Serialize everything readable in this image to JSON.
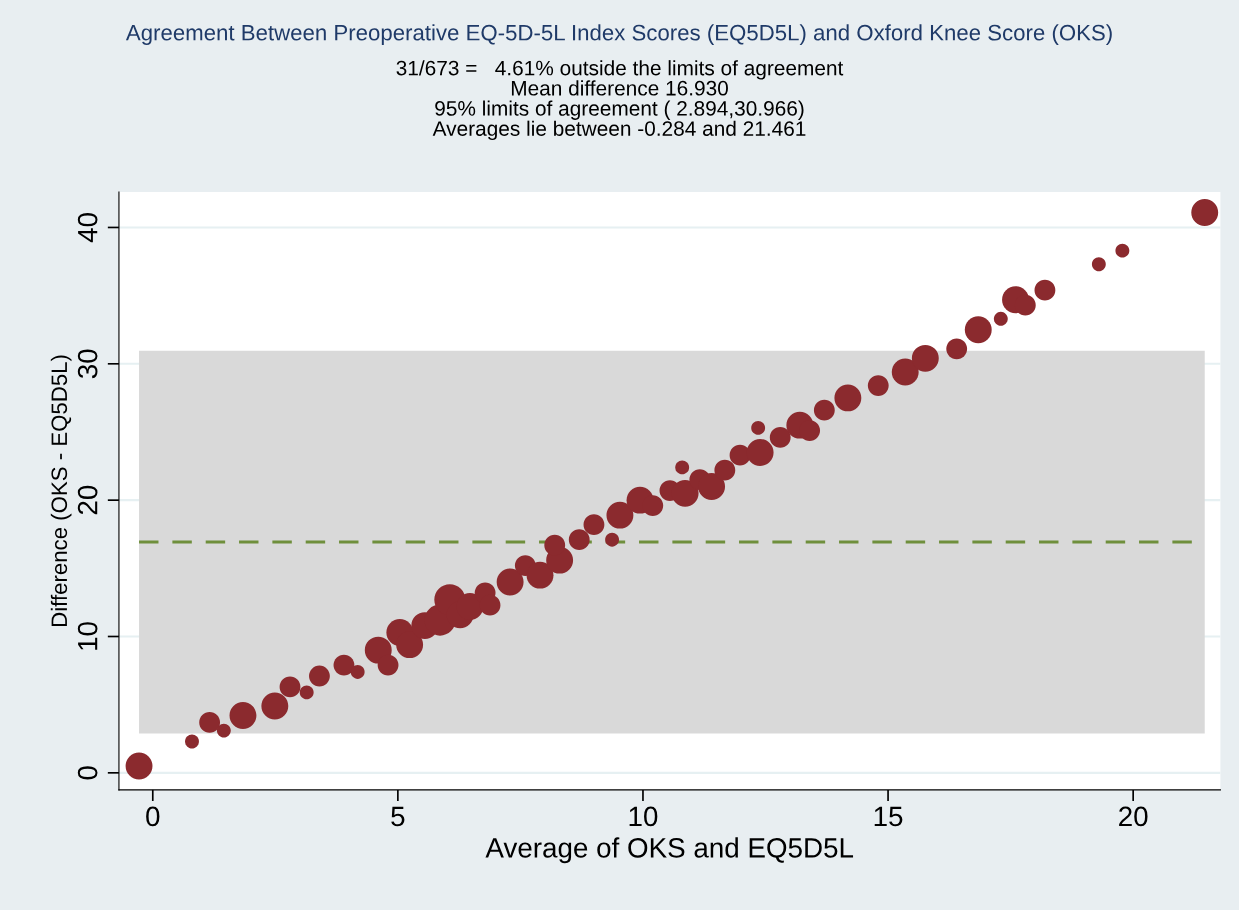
{
  "chart_data": {
    "type": "bubble",
    "title": "Agreement Between Preoperative EQ-5D-5L Index Scores (EQ5D5L) and Oxford Knee Score (OKS)",
    "subtitle": "31/673 =   4.61% outside the limits of agreement\nMean difference 16.930\n95% limits of agreement ( 2.894,30.966)\nAverages lie between -0.284 and 21.461",
    "xlabel": "Average of OKS and EQ5D5L",
    "ylabel": "Difference (OKS - EQ5D5L)",
    "x": [
      -0.28,
      0.8,
      1.16,
      1.45,
      1.84,
      2.49,
      2.8,
      3.14,
      3.4,
      3.9,
      4.18,
      4.6,
      4.8,
      5.04,
      5.24,
      5.55,
      5.86,
      6.06,
      6.27,
      6.47,
      6.78,
      6.88,
      7.29,
      7.6,
      7.9,
      8.3,
      8.2,
      8.7,
      9.0,
      9.37,
      9.53,
      9.94,
      10.2,
      10.55,
      10.86,
      10.8,
      11.16,
      11.4,
      11.67,
      11.98,
      12.35,
      12.39,
      12.8,
      13.2,
      13.4,
      13.7,
      14.18,
      14.8,
      15.35,
      15.76,
      16.4,
      16.84,
      17.3,
      17.6,
      17.8,
      18.2,
      19.3,
      19.78,
      21.46
    ],
    "values": [
      0.5,
      2.3,
      3.7,
      3.1,
      4.2,
      4.9,
      6.3,
      5.9,
      7.1,
      7.9,
      7.4,
      9.0,
      7.9,
      10.3,
      9.4,
      10.8,
      11.2,
      12.7,
      11.6,
      12.2,
      13.2,
      12.3,
      14.0,
      15.2,
      14.5,
      15.6,
      16.7,
      17.1,
      18.2,
      17.1,
      18.9,
      20.0,
      19.6,
      20.7,
      20.5,
      22.4,
      21.5,
      21.0,
      22.2,
      23.3,
      25.3,
      23.5,
      24.6,
      25.5,
      25.1,
      26.6,
      27.5,
      28.4,
      29.4,
      30.4,
      31.1,
      32.5,
      33.3,
      34.7,
      34.3,
      35.4,
      37.3,
      38.3,
      41.1
    ],
    "sizes": [
      0.75,
      0.2,
      0.45,
      0.2,
      0.75,
      0.75,
      0.45,
      0.2,
      0.45,
      0.45,
      0.2,
      0.75,
      0.45,
      0.75,
      0.75,
      0.75,
      1,
      1,
      0.75,
      0.75,
      0.45,
      0.45,
      0.75,
      0.45,
      0.75,
      0.75,
      0.45,
      0.45,
      0.45,
      0.2,
      0.75,
      0.75,
      0.45,
      0.45,
      0.75,
      0.2,
      0.45,
      0.75,
      0.45,
      0.45,
      0.2,
      0.75,
      0.45,
      0.75,
      0.45,
      0.45,
      0.75,
      0.45,
      0.75,
      0.75,
      0.45,
      0.75,
      0.2,
      0.75,
      0.45,
      0.45,
      0.2,
      0.2,
      0.75
    ],
    "color": "#8b2a2e",
    "xlim": [
      -0.69,
      21.78
    ],
    "ylim": [
      -1.25,
      42.6
    ],
    "xticks": [
      0,
      5,
      10,
      15,
      20
    ],
    "yticks": [
      0,
      10,
      20,
      30,
      40
    ],
    "grid": "y",
    "ref_lines": [
      {
        "axis": "y",
        "value": 16.93,
        "color": "#6f8f3c",
        "line_style": "dashed"
      }
    ],
    "bands": [
      {
        "axis": "y",
        "from": 2.894,
        "to": 30.966,
        "color": "#d9d9d9"
      }
    ]
  }
}
